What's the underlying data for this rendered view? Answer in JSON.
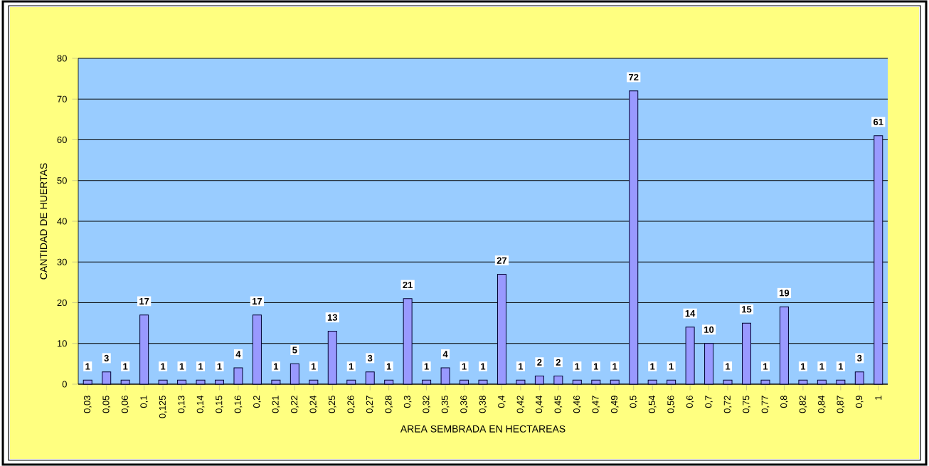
{
  "chart_data": {
    "type": "bar",
    "xlabel": "AREA SEMBRADA EN HECTAREAS",
    "ylabel": "CANTIDAD DE HUERTAS",
    "categories": [
      "0,03",
      "0,05",
      "0,06",
      "0,1",
      "0,125",
      "0,13",
      "0,14",
      "0,15",
      "0,16",
      "0,2",
      "0,21",
      "0,22",
      "0,24",
      "0,25",
      "0,26",
      "0,27",
      "0,28",
      "0,3",
      "0,32",
      "0,35",
      "0,36",
      "0,38",
      "0,4",
      "0,42",
      "0,44",
      "0,45",
      "0,46",
      "0,47",
      "0,49",
      "0,5",
      "0,54",
      "0,56",
      "0,6",
      "0,7",
      "0,72",
      "0,75",
      "0,77",
      "0,8",
      "0,82",
      "0,84",
      "0,87",
      "0,9",
      "1"
    ],
    "values": [
      1,
      3,
      1,
      17,
      1,
      1,
      1,
      1,
      4,
      17,
      1,
      5,
      1,
      13,
      1,
      3,
      1,
      21,
      1,
      4,
      1,
      1,
      27,
      1,
      2,
      2,
      1,
      1,
      1,
      72,
      1,
      1,
      14,
      10,
      1,
      15,
      1,
      19,
      1,
      1,
      1,
      3,
      61
    ],
    "color": "#9999ff",
    "ylim": [
      0,
      80
    ],
    "yticks": [
      0,
      10,
      20,
      30,
      40,
      50,
      60,
      70,
      80
    ],
    "grid": "y",
    "data_labels": true
  }
}
